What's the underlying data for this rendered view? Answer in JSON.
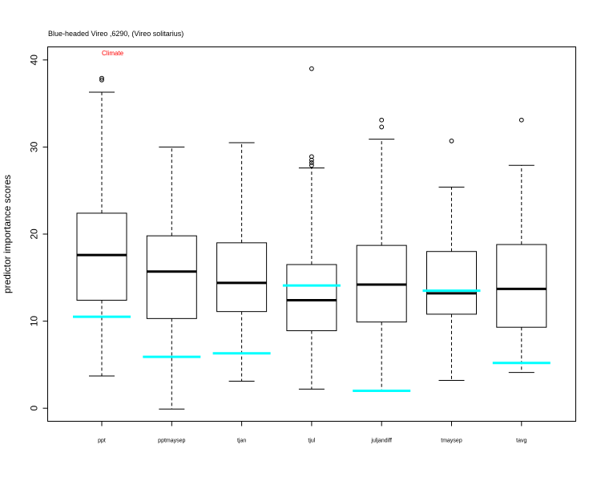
{
  "chart_data": {
    "type": "box",
    "title": "Blue-headed Vireo ,6290, (Vireo solitarius)",
    "annotation": "Climate",
    "xlabel": "",
    "ylabel": "predictor importance scores",
    "ylim": [
      -1.5,
      41.5
    ],
    "yticks": [
      0,
      10,
      20,
      30,
      40
    ],
    "categories": [
      "ppt",
      "pptmaysep",
      "tjan",
      "tjul",
      "juljandiff",
      "tmaysep",
      "tavg"
    ],
    "boxes": [
      {
        "min": 3.7,
        "q1": 12.4,
        "median": 17.6,
        "q3": 22.4,
        "max": 36.3,
        "outliers": [
          37.7,
          37.9
        ],
        "reference": 10.5
      },
      {
        "min": -0.1,
        "q1": 10.3,
        "median": 15.7,
        "q3": 19.8,
        "max": 30.0,
        "outliers": [],
        "reference": 5.9
      },
      {
        "min": 3.1,
        "q1": 11.1,
        "median": 14.4,
        "q3": 19.0,
        "max": 30.5,
        "outliers": [],
        "reference": 6.3
      },
      {
        "min": 2.2,
        "q1": 8.9,
        "median": 12.4,
        "q3": 16.5,
        "max": 27.6,
        "outliers": [
          27.9,
          28.2,
          28.5,
          28.9,
          39.0
        ],
        "reference": 14.1
      },
      {
        "min": 2.0,
        "q1": 9.9,
        "median": 14.2,
        "q3": 18.7,
        "max": 30.9,
        "outliers": [
          32.3,
          33.1
        ],
        "reference": 2.0
      },
      {
        "min": 3.2,
        "q1": 10.8,
        "median": 13.2,
        "q3": 18.0,
        "max": 25.4,
        "outliers": [
          30.7
        ],
        "reference": 13.5
      },
      {
        "min": 4.1,
        "q1": 9.3,
        "median": 13.7,
        "q3": 18.8,
        "max": 27.9,
        "outliers": [
          33.1
        ],
        "reference": 5.2
      }
    ],
    "colors": {
      "box": "#000000",
      "median": "#000000",
      "reference": "#00ffff",
      "annotation": "#ff0000",
      "background": "#ffffff"
    },
    "grid": false,
    "legend": "none"
  }
}
